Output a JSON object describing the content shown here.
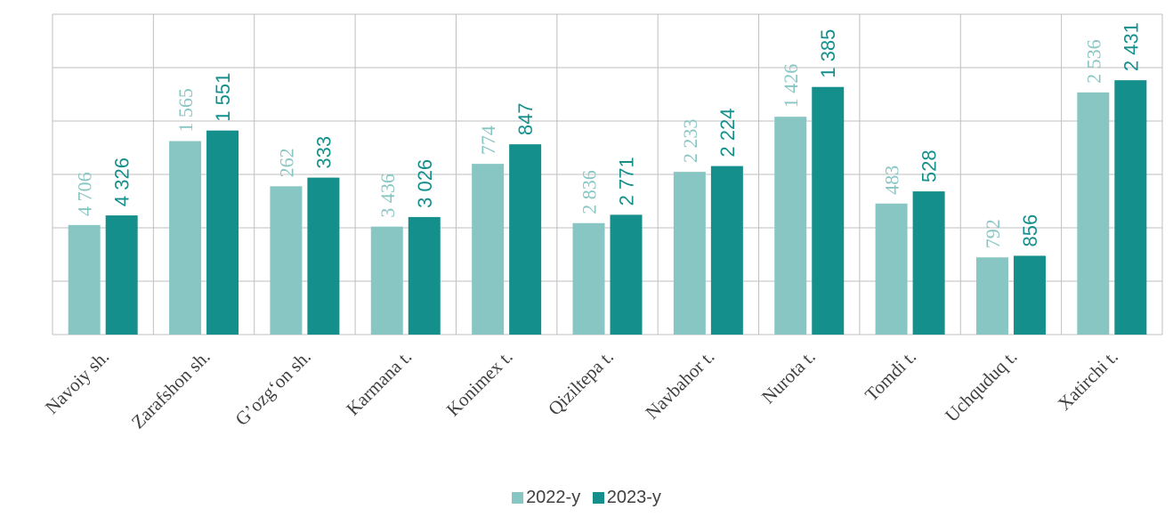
{
  "colors": {
    "series_2022": "#88C6C3",
    "series_2023": "#158F8C",
    "grid": "#BFBFBF"
  },
  "chart_data": {
    "type": "bar",
    "title": "",
    "xlabel": "",
    "ylabel": "",
    "grid": true,
    "legend_position": "bottom",
    "categories": [
      "Navoiy sh.",
      "Zarafshon sh.",
      "G’ozg‘on sh.",
      "Karmana t.",
      "Konimex t.",
      "Qiziltepa t.",
      "Navbahor t.",
      "Nurota t.",
      "Tomdi t.",
      "Uchquduq t.",
      "Xatirchi t."
    ],
    "series": [
      {
        "name": "2022-y",
        "values": [
          4706,
          1565,
          262,
          3436,
          774,
          2836,
          2233,
          1426,
          483,
          792,
          2536
        ],
        "labels": [
          "4 706",
          "1 565",
          "262",
          "3 436",
          "774",
          "2 836",
          "2 233",
          "1 426",
          "483",
          "792",
          "2 536"
        ]
      },
      {
        "name": "2023-y",
        "values": [
          4326,
          1551,
          333,
          3026,
          847,
          2771,
          2224,
          1385,
          528,
          856,
          2431
        ],
        "labels": [
          "4 326",
          "1 551",
          "333",
          "3 026",
          "847",
          "2 771",
          "2 224",
          "1 385",
          "528",
          "856",
          "2 431"
        ]
      }
    ],
    "bar_level_fraction": {
      "2022-y": [
        0.342,
        0.604,
        0.463,
        0.337,
        0.533,
        0.348,
        0.508,
        0.68,
        0.409,
        0.241,
        0.756
      ],
      "2023-y": [
        0.372,
        0.637,
        0.49,
        0.367,
        0.594,
        0.374,
        0.526,
        0.773,
        0.447,
        0.246,
        0.794
      ]
    }
  }
}
